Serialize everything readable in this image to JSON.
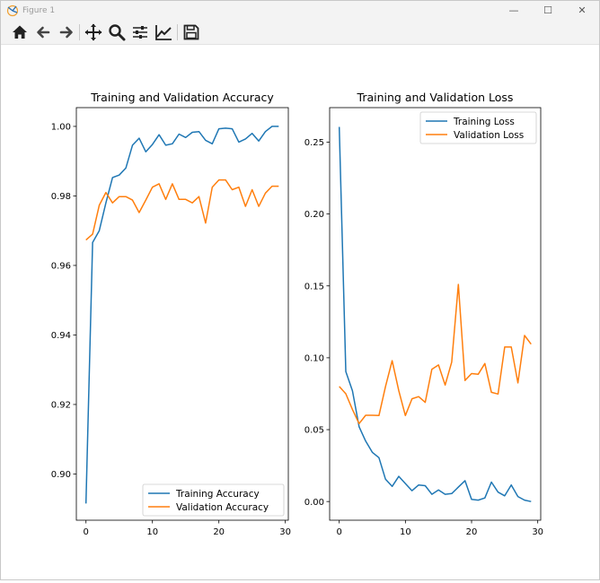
{
  "window": {
    "title": "Figure 1",
    "controls": {
      "minimize": "—",
      "maximize": "☐",
      "close": "✕"
    }
  },
  "toolbar": {
    "buttons": [
      "home-icon",
      "back-icon",
      "forward-icon",
      "pan-icon",
      "zoom-icon",
      "configure-subplots-icon",
      "edit-axis-icon",
      "save-icon"
    ]
  },
  "colors": {
    "training": "#1f77b4",
    "validation": "#ff7f0e"
  },
  "chart_data": [
    {
      "type": "line",
      "title": "Training and Validation Accuracy",
      "xlabel": "",
      "ylabel": "",
      "xlim": [
        -1.45,
        30.45
      ],
      "ylim": [
        0.8867,
        1.0054
      ],
      "xticks": [
        "0",
        "10",
        "20",
        "30"
      ],
      "yticks": [
        "0.90",
        "0.92",
        "0.94",
        "0.96",
        "0.98",
        "1.00"
      ],
      "legend_position": "lower-right",
      "x": [
        0,
        1,
        2,
        3,
        4,
        5,
        6,
        7,
        8,
        9,
        10,
        11,
        12,
        13,
        14,
        15,
        16,
        17,
        18,
        19,
        20,
        21,
        22,
        23,
        24,
        25,
        26,
        27,
        28,
        29
      ],
      "series": [
        {
          "name": "Training Accuracy",
          "color": "#1f77b4",
          "values": [
            0.8915,
            0.9666,
            0.97,
            0.978,
            0.9853,
            0.986,
            0.988,
            0.9946,
            0.9966,
            0.9927,
            0.9948,
            0.9976,
            0.9946,
            0.995,
            0.9978,
            0.9968,
            0.9983,
            0.9985,
            0.996,
            0.995,
            0.9993,
            0.9995,
            0.9993,
            0.9955,
            0.9964,
            0.998,
            0.9958,
            0.9985,
            1.0,
            1.0
          ]
        },
        {
          "name": "Validation Accuracy",
          "color": "#ff7f0e",
          "values": [
            0.9673,
            0.969,
            0.9773,
            0.981,
            0.978,
            0.9798,
            0.9798,
            0.9788,
            0.9752,
            0.9788,
            0.9825,
            0.9835,
            0.979,
            0.9835,
            0.979,
            0.979,
            0.978,
            0.9798,
            0.9722,
            0.9825,
            0.9846,
            0.9846,
            0.9818,
            0.9825,
            0.977,
            0.9818,
            0.977,
            0.9808,
            0.9828,
            0.9828
          ]
        }
      ]
    },
    {
      "type": "line",
      "title": "Training and Validation Loss",
      "xlabel": "",
      "ylabel": "",
      "xlim": [
        -1.45,
        30.45
      ],
      "ylim": [
        -0.013,
        0.274
      ],
      "xticks": [
        "0",
        "10",
        "20",
        "30"
      ],
      "yticks": [
        "0.00",
        "0.05",
        "0.10",
        "0.15",
        "0.20",
        "0.25"
      ],
      "legend_position": "upper-right",
      "x": [
        0,
        1,
        2,
        3,
        4,
        5,
        6,
        7,
        8,
        9,
        10,
        11,
        12,
        13,
        14,
        15,
        16,
        17,
        18,
        19,
        20,
        21,
        22,
        23,
        24,
        25,
        26,
        27,
        28,
        29
      ],
      "series": [
        {
          "name": "Training Loss",
          "color": "#1f77b4",
          "values": [
            0.2606,
            0.0904,
            0.077,
            0.052,
            0.042,
            0.0342,
            0.0305,
            0.0155,
            0.0105,
            0.0175,
            0.0125,
            0.0075,
            0.0115,
            0.011,
            0.005,
            0.008,
            0.005,
            0.0055,
            0.01,
            0.0145,
            0.0015,
            0.001,
            0.0025,
            0.0135,
            0.0065,
            0.004,
            0.0115,
            0.0035,
            0.001,
            0.0
          ]
        },
        {
          "name": "Validation Loss",
          "color": "#ff7f0e",
          "values": [
            0.08,
            0.075,
            0.064,
            0.0542,
            0.06,
            0.06,
            0.0598,
            0.08,
            0.098,
            0.077,
            0.0598,
            0.0715,
            0.073,
            0.069,
            0.092,
            0.095,
            0.081,
            0.097,
            0.151,
            0.0842,
            0.089,
            0.0885,
            0.096,
            0.076,
            0.0748,
            0.1075,
            0.1075,
            0.0825,
            0.1155,
            0.1095
          ]
        }
      ]
    }
  ]
}
